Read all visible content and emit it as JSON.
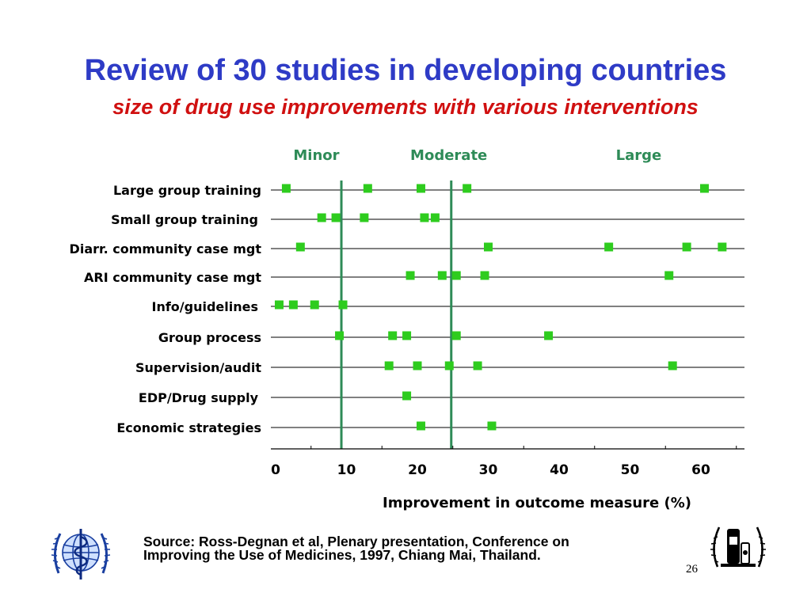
{
  "slide": {
    "title": "Review of 30 studies in developing countries",
    "subtitle": "size of drug use improvements with various interventions",
    "source_line1": "Source: Ross-Degnan et al, Plenary presentation, Conference on",
    "source_line2": "Improving the Use of Medicines, 1997, Chiang Mai, Thailand.",
    "page_number": "26",
    "logos": [
      "who-emblem-icon",
      "conference-emblem-icon"
    ]
  },
  "chart_data": {
    "type": "scatter",
    "title": "",
    "xlabel": "Improvement in outcome measure (%)",
    "ylabel": "",
    "xlim": [
      0,
      66
    ],
    "xticks": [
      0,
      10,
      20,
      30,
      40,
      50,
      60
    ],
    "grid": "horizontal",
    "legend": "none",
    "marker_color": "#2ecc1e",
    "band_line_color": "#2e8b57",
    "bands": [
      {
        "label": "Minor",
        "label_at": 2.5
      },
      {
        "label": "Moderate",
        "label_at": 19
      },
      {
        "label": "Large",
        "label_at": 48
      }
    ],
    "thresholds": [
      9.5,
      25
    ],
    "categories": [
      "Large group training",
      "Small group training",
      "Diarr. community case mgt",
      "ARI community case mgt",
      "Info/guidelines",
      "Group process",
      "Supervision/audit",
      "EDP/Drug supply",
      "Economic strategies"
    ],
    "points": [
      [
        1.5,
        13,
        20.5,
        27,
        60.5
      ],
      [
        6.5,
        8.5,
        12.5,
        21,
        22.5
      ],
      [
        3.5,
        30,
        47,
        58,
        63
      ],
      [
        19,
        23.5,
        25.5,
        29.5,
        55.5
      ],
      [
        0.5,
        2.5,
        5.5,
        9.5
      ],
      [
        9,
        16.5,
        18.5,
        25.5,
        38.5
      ],
      [
        16,
        20,
        24.5,
        28.5,
        56
      ],
      [
        18.5
      ],
      [
        20.5,
        30.5
      ]
    ]
  }
}
